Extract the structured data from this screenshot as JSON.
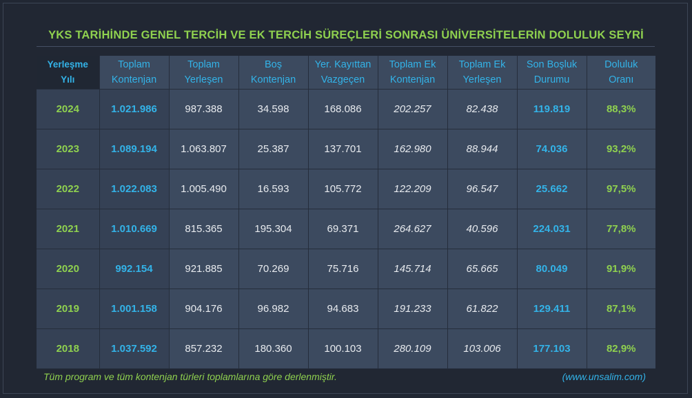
{
  "title": "YKS TARİHİNDE GENEL TERCİH VE EK TERCİH SÜREÇLERİ SONRASI ÜNİVERSİTELERİN DOLULUK SEYRİ",
  "headers": [
    [
      "Yerleşme",
      "Yılı"
    ],
    [
      "Toplam",
      "Kontenjan"
    ],
    [
      "Toplam",
      "Yerleşen"
    ],
    [
      "Boş",
      "Kontenjan"
    ],
    [
      "Yer. Kayıttan",
      "Vazgeçen"
    ],
    [
      "Toplam Ek",
      "Kontenjan"
    ],
    [
      "Toplam Ek",
      "Yerleşen"
    ],
    [
      "Son Boşluk",
      "Durumu"
    ],
    [
      "Doluluk",
      "Oranı"
    ]
  ],
  "rows": [
    [
      "2024",
      "1.021.986",
      "987.388",
      "34.598",
      "168.086",
      "202.257",
      "82.438",
      "119.819",
      "88,3%"
    ],
    [
      "2023",
      "1.089.194",
      "1.063.807",
      "25.387",
      "137.701",
      "162.980",
      "88.944",
      "74.036",
      "93,2%"
    ],
    [
      "2022",
      "1.022.083",
      "1.005.490",
      "16.593",
      "105.772",
      "122.209",
      "96.547",
      "25.662",
      "97,5%"
    ],
    [
      "2021",
      "1.010.669",
      "815.365",
      "195.304",
      "69.371",
      "264.627",
      "40.596",
      "224.031",
      "77,8%"
    ],
    [
      "2020",
      "992.154",
      "921.885",
      "70.269",
      "75.716",
      "145.714",
      "65.665",
      "80.049",
      "91,9%"
    ],
    [
      "2019",
      "1.001.158",
      "904.176",
      "96.982",
      "94.683",
      "191.233",
      "61.822",
      "129.411",
      "87,1%"
    ],
    [
      "2018",
      "1.037.592",
      "857.232",
      "180.360",
      "100.103",
      "280.109",
      "103.006",
      "177.103",
      "82,9%"
    ]
  ],
  "footer": {
    "note": "Tüm program ve tüm kontenjan türleri toplamlarına göre derlenmiştir.",
    "site": "(www.unsalim.com)"
  },
  "colors": {
    "background": "#212733",
    "cell": "#3c4a5f",
    "green": "#8fd14f",
    "blue": "#33b3e8",
    "text": "#e8ebef"
  }
}
